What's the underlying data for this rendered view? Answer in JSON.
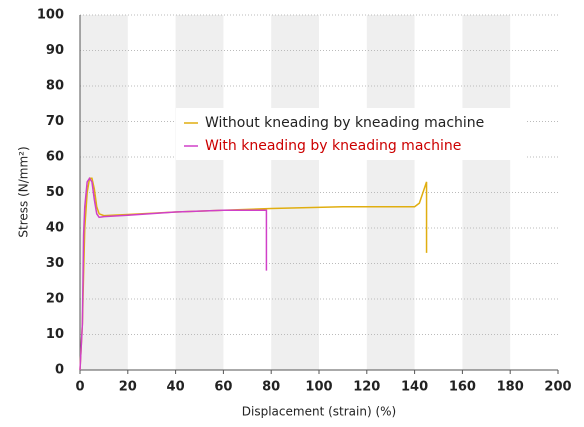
{
  "chart_data": {
    "type": "line",
    "x_label": "Displacement (strain) (%)",
    "y_label": "Stress (N/mm²)",
    "xlim": [
      0,
      200
    ],
    "ylim": [
      0,
      100
    ],
    "xticks": [
      0,
      20,
      40,
      60,
      80,
      100,
      120,
      140,
      160,
      180,
      200
    ],
    "yticks": [
      0,
      10,
      20,
      30,
      40,
      50,
      60,
      70,
      80,
      90,
      100
    ],
    "grid": true,
    "series": [
      {
        "name": "Without kneading by kneading machine",
        "color": "#e0ae10",
        "x": [
          0,
          1,
          1.5,
          2,
          3,
          4,
          5,
          6,
          7,
          8,
          10,
          20,
          40,
          60,
          80,
          110,
          140,
          142,
          144,
          145,
          145
        ],
        "values": [
          0,
          13,
          27,
          40,
          50,
          54,
          54,
          51,
          46,
          44,
          43.5,
          43.8,
          44.5,
          45,
          45.5,
          46,
          46,
          47,
          51,
          53,
          33
        ]
      },
      {
        "name": "With kneading by kneading machine",
        "color": "#d040c8",
        "x": [
          0,
          1,
          1.5,
          2,
          3,
          4,
          5,
          6,
          7,
          8,
          10,
          20,
          40,
          60,
          78,
          78
        ],
        "values": [
          0,
          13,
          38,
          46,
          53,
          54,
          53,
          48,
          44,
          43,
          43.2,
          43.6,
          44.5,
          45,
          45,
          28
        ]
      }
    ]
  }
}
